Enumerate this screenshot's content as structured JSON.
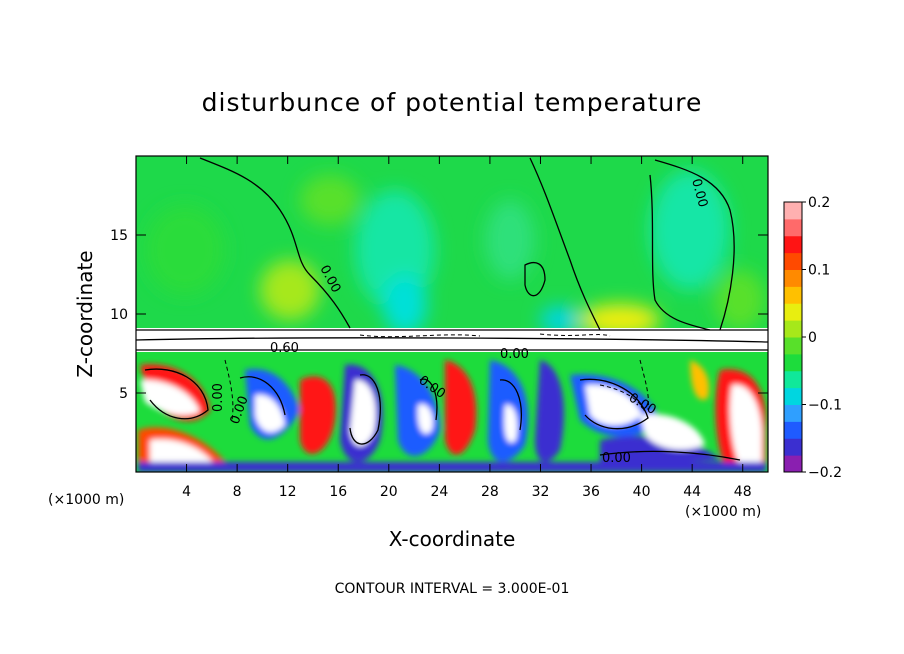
{
  "chart_data": {
    "type": "heatmap",
    "title": "disturbunce of potential temperature",
    "xlabel": "X-coordinate",
    "ylabel": "Z-coordinate",
    "x_unit": "(×1000 m)",
    "x_unit_right": "(×1000 m)",
    "xlim": [
      0,
      50
    ],
    "ylim": [
      0,
      20
    ],
    "x_ticks": [
      "4",
      "8",
      "12",
      "16",
      "20",
      "24",
      "28",
      "32",
      "36",
      "40",
      "44",
      "48"
    ],
    "y_ticks": [
      "5",
      "10",
      "15"
    ],
    "colorbar": {
      "range": [
        -0.2,
        0.2
      ],
      "ticks": [
        "0.2",
        "0.1",
        "0",
        "−0.1",
        "−0.2"
      ],
      "colors": [
        "#8a1fb0",
        "#3b2fd0",
        "#1f5bff",
        "#2f9fff",
        "#00d6e0",
        "#10e89a",
        "#1ddc3c",
        "#58e02a",
        "#a6e81a",
        "#e8ee10",
        "#ffc000",
        "#ff8a00",
        "#ff4a00",
        "#ff1414",
        "#ff6a6a",
        "#ffb0b0"
      ]
    },
    "contour_labels": [
      "0.00",
      "0.00",
      "0.60",
      "0.00",
      "0.00",
      "0.00",
      "0.00",
      "0.00",
      "0.00"
    ],
    "contour_interval": "CONTOUR INTERVAL = 3.000E-01"
  }
}
